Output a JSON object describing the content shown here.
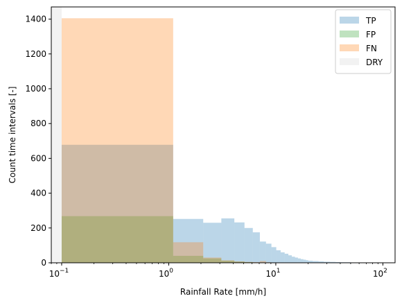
{
  "chart_data": {
    "type": "bar",
    "xlabel": "Rainfall Rate [mm/h]",
    "ylabel": "Count time intervals [-]",
    "xscale": "log",
    "xlim": [
      0.08,
      130
    ],
    "ylim": [
      0,
      1470
    ],
    "grid": false,
    "legend_position": "top-right",
    "x_ticks": [
      {
        "value": 0.1,
        "base": "10",
        "exp": "−1"
      },
      {
        "value": 1,
        "base": "10",
        "exp": "0"
      },
      {
        "value": 10,
        "base": "10",
        "exp": "1"
      },
      {
        "value": 100,
        "base": "10",
        "exp": "2"
      }
    ],
    "y_ticks": [
      0,
      200,
      400,
      600,
      800,
      1000,
      1200,
      1400
    ],
    "series": [
      {
        "name": "DRY",
        "color": "#d9d9d9",
        "opacity": 0.35,
        "bins": [
          {
            "x0": 0.08,
            "x1": 0.1,
            "value": 1470
          }
        ]
      },
      {
        "name": "TP",
        "color": "#1f77b4",
        "opacity": 0.3,
        "bins": [
          {
            "x0": 0.1,
            "x1": 1.1,
            "value": 678
          },
          {
            "x0": 1.1,
            "x1": 2.1,
            "value": 252
          },
          {
            "x0": 2.1,
            "x1": 3.1,
            "value": 230
          },
          {
            "x0": 3.1,
            "x1": 4.1,
            "value": 255
          },
          {
            "x0": 4.1,
            "x1": 5.1,
            "value": 232
          },
          {
            "x0": 5.1,
            "x1": 6.1,
            "value": 200
          },
          {
            "x0": 6.1,
            "x1": 7.1,
            "value": 175
          },
          {
            "x0": 7.1,
            "x1": 8.1,
            "value": 122
          },
          {
            "x0": 8.1,
            "x1": 9.1,
            "value": 110
          },
          {
            "x0": 9.1,
            "x1": 10.1,
            "value": 90
          },
          {
            "x0": 10.1,
            "x1": 11.1,
            "value": 72
          },
          {
            "x0": 11.1,
            "x1": 12.1,
            "value": 60
          },
          {
            "x0": 12.1,
            "x1": 13.1,
            "value": 52
          },
          {
            "x0": 13.1,
            "x1": 14.1,
            "value": 43
          },
          {
            "x0": 14.1,
            "x1": 15.1,
            "value": 35
          },
          {
            "x0": 15.1,
            "x1": 16.1,
            "value": 30
          },
          {
            "x0": 16.1,
            "x1": 17.1,
            "value": 25
          },
          {
            "x0": 17.1,
            "x1": 18.1,
            "value": 21
          },
          {
            "x0": 18.1,
            "x1": 19.1,
            "value": 18
          },
          {
            "x0": 19.1,
            "x1": 20.1,
            "value": 15
          },
          {
            "x0": 20.1,
            "x1": 22.1,
            "value": 12
          },
          {
            "x0": 22.1,
            "x1": 25.1,
            "value": 10
          },
          {
            "x0": 25.1,
            "x1": 28.1,
            "value": 8
          },
          {
            "x0": 28.1,
            "x1": 32.1,
            "value": 6
          },
          {
            "x0": 32.1,
            "x1": 36.1,
            "value": 5
          },
          {
            "x0": 36.1,
            "x1": 40.1,
            "value": 4
          },
          {
            "x0": 40.1,
            "x1": 50.1,
            "value": 3
          },
          {
            "x0": 50.1,
            "x1": 60.1,
            "value": 2
          },
          {
            "x0": 60.1,
            "x1": 75.1,
            "value": 2
          },
          {
            "x0": 75.1,
            "x1": 100.1,
            "value": 1
          }
        ]
      },
      {
        "name": "FP",
        "color": "#2ca02c",
        "opacity": 0.3,
        "bins": [
          {
            "x0": 0.1,
            "x1": 1.1,
            "value": 268
          },
          {
            "x0": 1.1,
            "x1": 2.1,
            "value": 40
          },
          {
            "x0": 2.1,
            "x1": 3.1,
            "value": 25
          },
          {
            "x0": 3.1,
            "x1": 4.1,
            "value": 12
          },
          {
            "x0": 4.1,
            "x1": 5.1,
            "value": 7
          },
          {
            "x0": 5.1,
            "x1": 6.1,
            "value": 4
          },
          {
            "x0": 6.1,
            "x1": 8.1,
            "value": 2
          },
          {
            "x0": 8.1,
            "x1": 10.1,
            "value": 1
          }
        ]
      },
      {
        "name": "FN",
        "color": "#ff7f0e",
        "opacity": 0.3,
        "bins": [
          {
            "x0": 0.1,
            "x1": 1.1,
            "value": 1405
          },
          {
            "x0": 1.1,
            "x1": 2.1,
            "value": 118
          },
          {
            "x0": 2.1,
            "x1": 3.1,
            "value": 30
          },
          {
            "x0": 3.1,
            "x1": 4.1,
            "value": 14
          },
          {
            "x0": 4.1,
            "x1": 5.1,
            "value": 8
          },
          {
            "x0": 5.1,
            "x1": 6.1,
            "value": 5
          },
          {
            "x0": 6.1,
            "x1": 7.1,
            "value": 4
          },
          {
            "x0": 7.1,
            "x1": 8.1,
            "value": 10
          },
          {
            "x0": 8.1,
            "x1": 9.1,
            "value": 3
          },
          {
            "x0": 9.1,
            "x1": 10.1,
            "value": 2
          }
        ]
      }
    ],
    "legend_order": [
      "TP",
      "FP",
      "FN",
      "DRY"
    ]
  }
}
